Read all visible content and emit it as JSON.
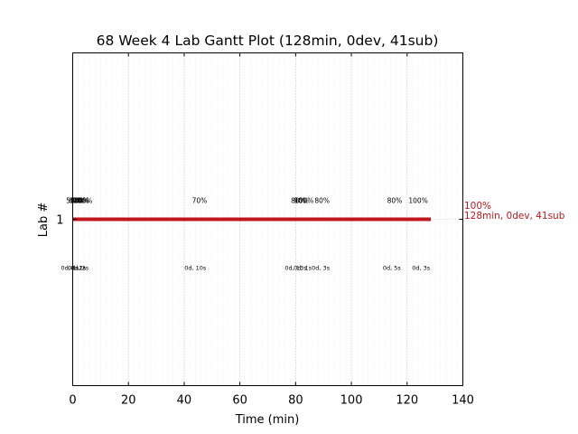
{
  "chart_data": {
    "type": "gantt",
    "title": "68 Week 4 Lab Gantt Plot (128min, 0dev, 41sub)",
    "xlabel": "Time (min)",
    "ylabel": "Lab #",
    "xlim": [
      0,
      140
    ],
    "xticks": [
      0,
      20,
      40,
      60,
      80,
      100,
      120,
      140
    ],
    "xtick_labels": [
      "0",
      "20",
      "40",
      "60",
      "80",
      "100",
      "120",
      "140"
    ],
    "ylim": [
      0,
      2
    ],
    "yticks": [
      1
    ],
    "ytick_labels": [
      "1"
    ],
    "grid": true,
    "bar_color": "#c0171d",
    "end_label": {
      "pct": "100%",
      "summary": "128min, 0dev, 41sub",
      "color": "#c0171d"
    },
    "bars": [
      {
        "lab": 1,
        "start": 0,
        "end": 128.5
      }
    ],
    "score_markers": [
      {
        "x": 0.3,
        "label": "50%"
      },
      {
        "x": 1.2,
        "label": "60%"
      },
      {
        "x": 2.0,
        "label": "50%"
      },
      {
        "x": 2.5,
        "label": "100%"
      },
      {
        "x": 3.1,
        "label": "80%"
      },
      {
        "x": 3.6,
        "label": "100%"
      },
      {
        "x": 45.5,
        "label": "70%"
      },
      {
        "x": 81.0,
        "label": "80%"
      },
      {
        "x": 82.0,
        "label": "90%"
      },
      {
        "x": 83.0,
        "label": "100%"
      },
      {
        "x": 89.5,
        "label": "80%"
      },
      {
        "x": 115.5,
        "label": "80%"
      },
      {
        "x": 124.0,
        "label": "100%"
      }
    ],
    "feedback_markers": [
      {
        "x": -1.0,
        "label": "0d, 1s"
      },
      {
        "x": 1.5,
        "label": "0d, 2s"
      },
      {
        "x": 2.5,
        "label": "0d, 2s"
      },
      {
        "x": 3.5,
        "label": "1s"
      },
      {
        "x": 44.0,
        "label": "0d, 10s"
      },
      {
        "x": 80.0,
        "label": "0d, 13s"
      },
      {
        "x": 82.5,
        "label": "0d, 1s"
      },
      {
        "x": 89.0,
        "label": "0d, 3s"
      },
      {
        "x": 114.5,
        "label": "0d, 5s"
      },
      {
        "x": 125.0,
        "label": "0d, 3s"
      }
    ]
  }
}
